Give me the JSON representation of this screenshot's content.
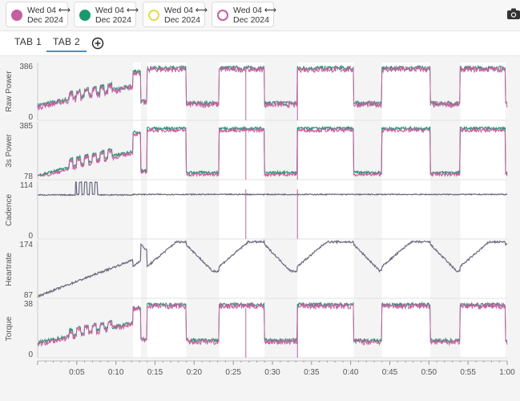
{
  "compare_chips": [
    {
      "line1": "Wed 04",
      "line2": "Dec 2024",
      "color": "#c45fa0",
      "style": "filled"
    },
    {
      "line1": "Wed 04",
      "line2": "Dec 2024",
      "color": "#1a9a6c",
      "style": "filled"
    },
    {
      "line1": "Wed 04",
      "line2": "Dec 2024",
      "color": "#e8d848",
      "style": "ring"
    },
    {
      "line1": "Wed 04",
      "line2": "Dec 2024",
      "color": "#c45fa0",
      "style": "ring"
    }
  ],
  "toolbar": {
    "camera_icon": "camera-icon"
  },
  "tabs": [
    {
      "label": "TAB 1",
      "active": false
    },
    {
      "label": "TAB 2",
      "active": true
    }
  ],
  "add_tab_icon": "plus-circle-icon",
  "colors": {
    "series_a": "#c45fa0",
    "series_b": "#1a9a6c",
    "series_gray": "#6b6b80",
    "band": "#ffffff"
  },
  "chart_data": {
    "type": "line",
    "x_ticks": [
      "0:05",
      "0:10",
      "0:15",
      "0:20",
      "0:25",
      "0:30",
      "0:35",
      "0:40",
      "0:45",
      "0:50",
      "0:55",
      "1:00"
    ],
    "x_range_minutes": [
      0,
      60
    ],
    "intervals_minutes": [
      [
        12.2,
        13.2
      ],
      [
        14.0,
        19.0
      ],
      [
        23.2,
        29.0
      ],
      [
        33.2,
        40.4
      ],
      [
        44.0,
        50.2
      ],
      [
        54.0,
        59.8
      ]
    ],
    "panels": [
      {
        "name": "Raw Power",
        "ymin": 0,
        "ymax": 386,
        "ticks": [
          "386",
          "0"
        ]
      },
      {
        "name": "3s Power",
        "ymin": 78,
        "ymax": 385,
        "ticks": [
          "385",
          "78"
        ]
      },
      {
        "name": "Cadence",
        "ymin": 0,
        "ymax": 114,
        "ticks": [
          "114",
          "0"
        ]
      },
      {
        "name": "Heartrate",
        "ymin": 87,
        "ymax": 174,
        "ticks": [
          "174",
          "87"
        ]
      },
      {
        "name": "Torque",
        "ymin": 0,
        "ymax": 38,
        "ticks": [
          "38",
          "0"
        ]
      }
    ],
    "series": [
      {
        "name": "Wed 04 Dec 2024 (A)",
        "color": "#c45fa0"
      },
      {
        "name": "Wed 04 Dec 2024 (B)",
        "color": "#1a9a6c"
      }
    ]
  }
}
